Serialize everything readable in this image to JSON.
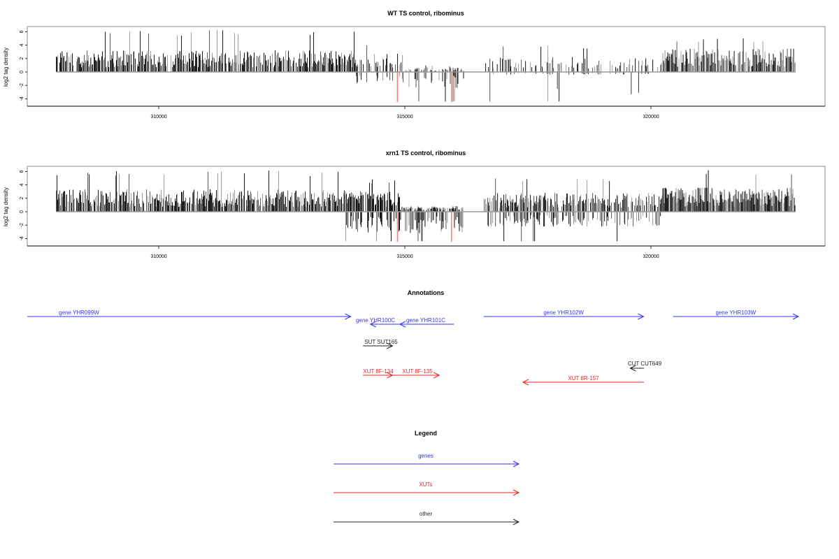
{
  "chart_data": [
    {
      "type": "bar",
      "id": "wt",
      "title": "WT TS control, ribominus",
      "ylabel": "log2 tag density",
      "xlabel": "",
      "ylim": [
        -5,
        7
      ],
      "xlim": [
        307900,
        323000
      ],
      "yticks": [
        "6",
        "4",
        "2",
        "0",
        "-2",
        "-4"
      ],
      "ytick_values": [
        6,
        4,
        2,
        0,
        -2,
        -4
      ],
      "xticks": [
        "310000",
        "315000",
        "320000"
      ],
      "xtick_values": [
        310000,
        315000,
        320000
      ],
      "data_range": [
        307920,
        322940
      ],
      "segments": [
        {
          "from": 307920,
          "to": 314000,
          "pos_mean": 2.3,
          "pos_max": 6.3,
          "neg_mean": 0,
          "density": 0.9
        },
        {
          "from": 314000,
          "to": 315000,
          "pos_mean": 2.0,
          "pos_max": 4.0,
          "neg_mean": -1.2,
          "density": 0.5
        },
        {
          "from": 315000,
          "to": 316200,
          "pos_mean": 0.5,
          "pos_max": 1.0,
          "neg_mean": -1.8,
          "density": 0.45
        },
        {
          "from": 316200,
          "to": 316600,
          "pos_mean": 0,
          "pos_max": 0,
          "neg_mean": 0,
          "density": 0.05
        },
        {
          "from": 316600,
          "to": 320200,
          "pos_mean": 1.6,
          "pos_max": 4.0,
          "neg_mean": -0.3,
          "density": 0.3
        },
        {
          "from": 320200,
          "to": 322940,
          "pos_mean": 2.5,
          "pos_max": 5.2,
          "neg_mean": 0,
          "density": 0.85
        }
      ],
      "highlights": [
        {
          "x": 314850,
          "y": -4.5,
          "color": "#f08080"
        },
        {
          "x": 315950,
          "y": -4.5,
          "color": "#f08080"
        }
      ],
      "notable_negatives": [
        {
          "x": 318100,
          "y": -2.5
        },
        {
          "x": 319600,
          "y": -3.3
        },
        {
          "x": 319750,
          "y": -3.1
        }
      ]
    },
    {
      "type": "bar",
      "id": "xrn1",
      "title": "xrn1 TS control, ribominus",
      "ylabel": "log2 tag density",
      "xlabel": "",
      "ylim": [
        -5,
        7
      ],
      "xlim": [
        307900,
        323000
      ],
      "yticks": [
        "6",
        "4",
        "2",
        "0",
        "-2",
        "-4"
      ],
      "ytick_values": [
        6,
        4,
        2,
        0,
        -2,
        -4
      ],
      "xticks": [
        "310000",
        "315000",
        "320000"
      ],
      "xtick_values": [
        310000,
        315000,
        320000
      ],
      "data_range": [
        307920,
        322940
      ],
      "segments": [
        {
          "from": 307920,
          "to": 313800,
          "pos_mean": 2.4,
          "pos_max": 6.2,
          "neg_mean": 0,
          "density": 0.95
        },
        {
          "from": 313800,
          "to": 314900,
          "pos_mean": 2.2,
          "pos_max": 4.8,
          "neg_mean": -2.2,
          "density": 0.9
        },
        {
          "from": 314900,
          "to": 316200,
          "pos_mean": 0.6,
          "pos_max": 1.6,
          "neg_mean": -2.3,
          "density": 0.8
        },
        {
          "from": 316200,
          "to": 316600,
          "pos_mean": 0,
          "pos_max": 0,
          "neg_mean": 0,
          "density": 0.05
        },
        {
          "from": 316600,
          "to": 320200,
          "pos_mean": 2.0,
          "pos_max": 5.0,
          "neg_mean": -1.6,
          "density": 0.75
        },
        {
          "from": 320200,
          "to": 322940,
          "pos_mean": 2.6,
          "pos_max": 6.3,
          "neg_mean": 0,
          "density": 0.95
        }
      ],
      "highlights": [
        {
          "x": 314850,
          "y": -4.5,
          "color": "#f08080"
        },
        {
          "x": 315950,
          "y": -4.5,
          "color": "#f08080"
        }
      ],
      "notable_negatives": []
    }
  ],
  "annotations": {
    "title": "Annotations",
    "features": [
      {
        "label": "gene YHR099W",
        "type": "gene",
        "start": 306500,
        "end": 313900,
        "strand": "+",
        "row": 0
      },
      {
        "label": "gene YHR100C",
        "type": "gene",
        "start": 314300,
        "end": 314900,
        "strand": "-",
        "row": 1
      },
      {
        "label": "gene YHR101C",
        "type": "gene",
        "start": 314900,
        "end": 316000,
        "strand": "-",
        "row": 1
      },
      {
        "label": "gene YHR102W",
        "type": "gene",
        "start": 316600,
        "end": 319850,
        "strand": "+",
        "row": 0
      },
      {
        "label": "gene YHR103W",
        "type": "gene",
        "start": 320450,
        "end": 323000,
        "strand": "+",
        "row": 0
      },
      {
        "label": "SUT SUT165",
        "type": "other",
        "start": 314150,
        "end": 314750,
        "strand": "+",
        "row": 2
      },
      {
        "label": "XUT 8F-134",
        "type": "xut",
        "start": 314150,
        "end": 314750,
        "strand": "+",
        "row": 3
      },
      {
        "label": "XUT 8F-135",
        "type": "xut",
        "start": 314750,
        "end": 315700,
        "strand": "+",
        "row": 3
      },
      {
        "label": "CUT CUT649",
        "type": "other",
        "start": 319580,
        "end": 319860,
        "strand": "-",
        "row": 4
      },
      {
        "label": "XUT 8R-157",
        "type": "xut",
        "start": 317400,
        "end": 319860,
        "strand": "-",
        "row": 5
      }
    ]
  },
  "legend": {
    "title": "Legend",
    "items": [
      {
        "label": "genes",
        "type": "gene"
      },
      {
        "label": "XUTs",
        "type": "xut"
      },
      {
        "label": "other",
        "type": "other"
      }
    ]
  },
  "colors": {
    "gene": "#3333ee",
    "xut": "#ee2222",
    "other": "#222222",
    "highlight": "#f08080",
    "baseline": "#999999",
    "frame": "#888888"
  }
}
